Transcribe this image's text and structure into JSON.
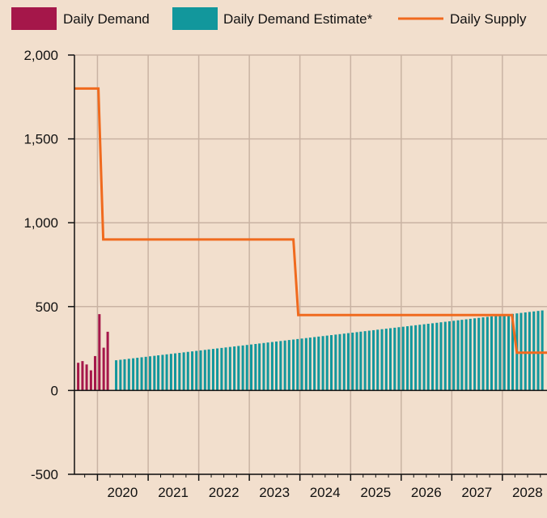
{
  "colors": {
    "background": "#f2dfcd",
    "grid": "#c9b3a3",
    "axis": "#111111",
    "demand": "#a5174a",
    "estimate": "#12979c",
    "supply": "#f06a1e"
  },
  "chart_data": {
    "type": "bar",
    "title": "",
    "xlabel": "",
    "ylabel": "",
    "ylim": [
      -500,
      2000
    ],
    "xlim": [
      "2019-07-19",
      "2028-11-18"
    ],
    "y_ticks": [
      -500,
      0,
      500,
      1000,
      1500,
      2000
    ],
    "y_tick_labels": [
      "-500",
      "0",
      "500",
      "1,000",
      "1,500",
      "2,000"
    ],
    "x_ticks": [
      "2020-01-01",
      "2021-01-01",
      "2022-01-01",
      "2023-01-01",
      "2024-01-01",
      "2025-01-01",
      "2026-01-01",
      "2027-01-01",
      "2028-01-01"
    ],
    "x_tick_labels": [
      "2020",
      "2021",
      "2022",
      "2023",
      "2024",
      "2025",
      "2026",
      "2027",
      "2028"
    ],
    "grid": true,
    "legend": {
      "position": "top-left",
      "orientation": "horizontal"
    },
    "series": [
      {
        "name": "Daily Demand",
        "type": "bar",
        "x": [
          "2019-08",
          "2019-09",
          "2019-10",
          "2019-11",
          "2019-12",
          "2020-01",
          "2020-02",
          "2020-03",
          "2020-04"
        ],
        "values": [
          165,
          175,
          155,
          120,
          205,
          455,
          255,
          350,
          0
        ]
      },
      {
        "name": "Daily Demand Estimate*",
        "type": "bar",
        "x_start": "2020-05",
        "x_step": "month",
        "values_start": 180,
        "values_end": 480,
        "count": 103
      },
      {
        "name": "Daily Supply",
        "type": "step-line",
        "x": [
          "2019-07-19",
          "2020-01-08",
          "2020-02-12",
          "2023-11-15",
          "2023-12-20",
          "2028-03-10",
          "2028-04-14",
          "2028-11-18"
        ],
        "values": [
          1800,
          1800,
          900,
          900,
          450,
          450,
          225,
          225
        ]
      }
    ]
  }
}
